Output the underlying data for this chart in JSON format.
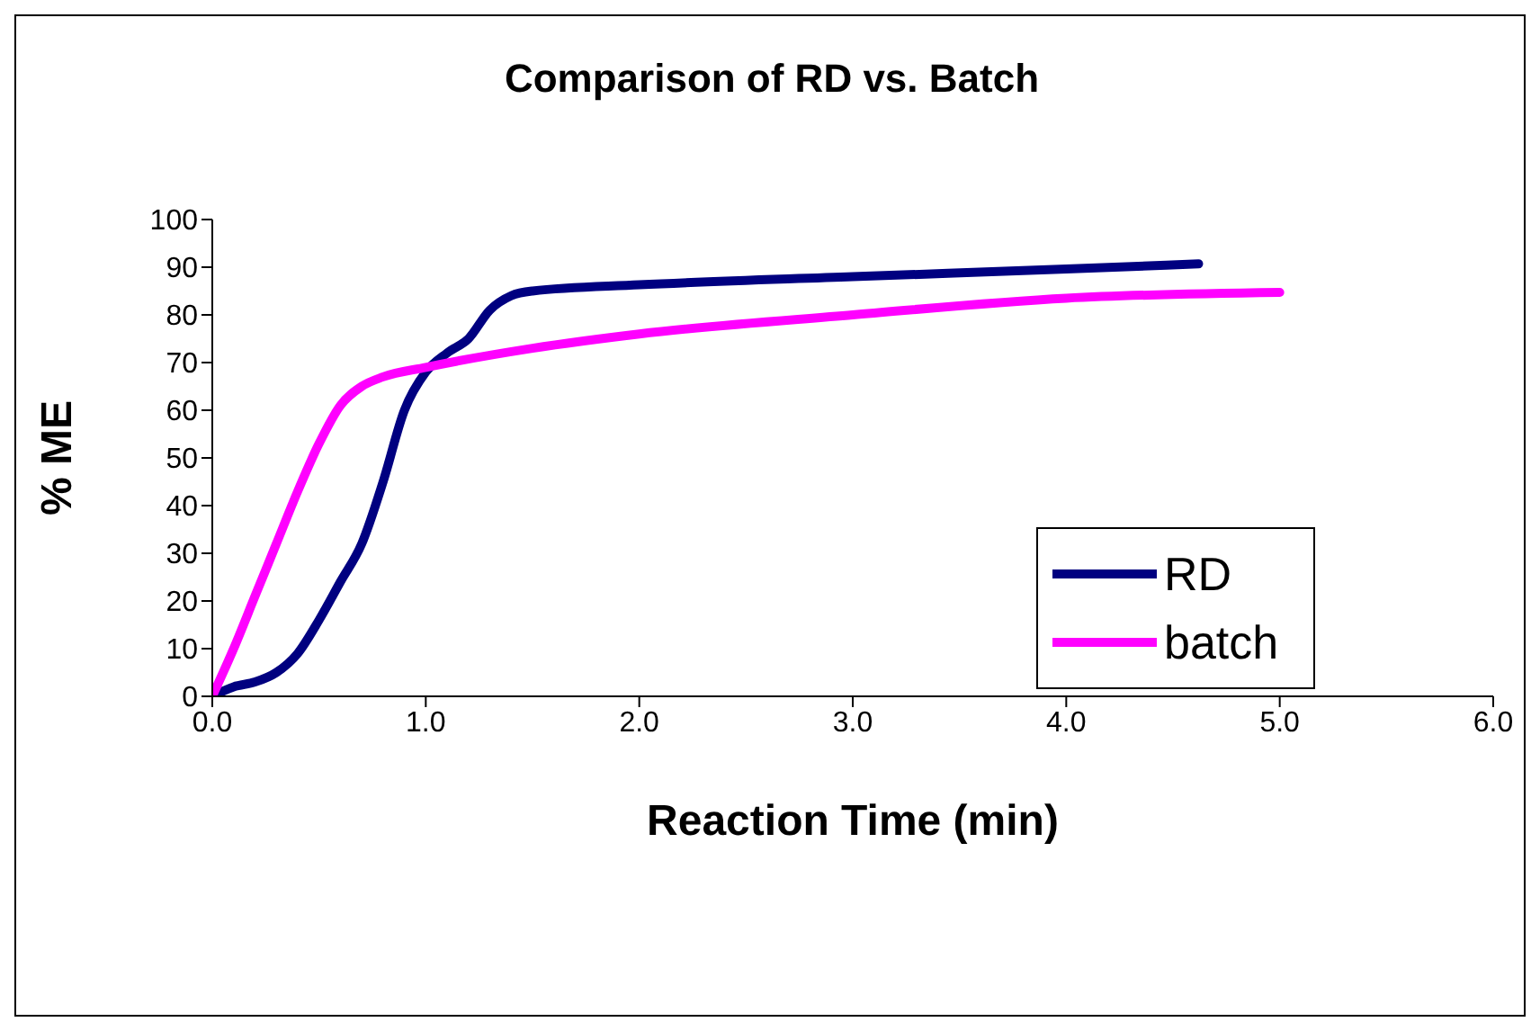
{
  "chart_data": {
    "type": "line",
    "title": "Comparison of RD vs. Batch",
    "xlabel": "Reaction Time (min)",
    "ylabel": "% ME",
    "series": [
      {
        "name": "RD",
        "color": "#000080",
        "x": [
          0,
          0.1,
          0.2,
          0.3,
          0.4,
          0.5,
          0.6,
          0.7,
          0.8,
          0.9,
          1.0,
          1.1,
          1.2,
          1.3,
          1.4,
          1.5,
          2.0,
          3.0,
          4.0,
          4.62
        ],
        "values": [
          0,
          2,
          3,
          5,
          9,
          16,
          24,
          32,
          45,
          60,
          68,
          72,
          75,
          81,
          84,
          85,
          86.3,
          88,
          89.6,
          90.7
        ]
      },
      {
        "name": "batch",
        "color": "#ff00ff",
        "x": [
          0,
          0.1,
          0.2,
          0.3,
          0.4,
          0.5,
          0.6,
          0.7,
          0.8,
          1.0,
          1.5,
          2.0,
          3.0,
          4.0,
          5.0
        ],
        "values": [
          0,
          10,
          21,
          32,
          43,
          53,
          61,
          65,
          67,
          69,
          73,
          76,
          80,
          83.5,
          84.7
        ]
      }
    ],
    "xlim": [
      0,
      6
    ],
    "xticks": [
      {
        "value": 0,
        "label": "0.0"
      },
      {
        "value": 1,
        "label": "1.0"
      },
      {
        "value": 2,
        "label": "2.0"
      },
      {
        "value": 3,
        "label": "3.0"
      },
      {
        "value": 4,
        "label": "4.0"
      },
      {
        "value": 5,
        "label": "5.0"
      },
      {
        "value": 6,
        "label": "6.0"
      }
    ],
    "ylim": [
      0,
      100
    ],
    "yticks": [
      0,
      10,
      20,
      30,
      40,
      50,
      60,
      70,
      80,
      90,
      100
    ],
    "grid": false,
    "legend": "right",
    "marker": "none",
    "line_style": "solid"
  }
}
